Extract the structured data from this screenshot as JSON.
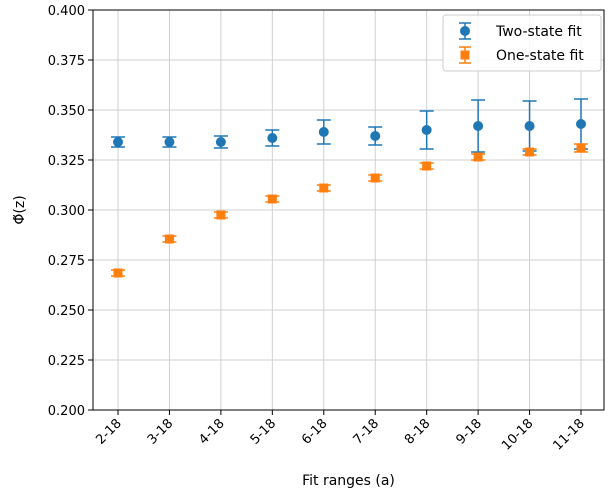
{
  "chart_data": {
    "type": "scatter",
    "title": "",
    "xlabel": "Fit ranges (a)",
    "ylabel": "Φ̃(z)",
    "categories": [
      "2-18",
      "3-18",
      "4-18",
      "5-18",
      "6-18",
      "7-18",
      "8-18",
      "9-18",
      "10-18",
      "11-18"
    ],
    "ylim": [
      0.2,
      0.4
    ],
    "yticks": [
      "0.200",
      "0.225",
      "0.250",
      "0.275",
      "0.300",
      "0.325",
      "0.350",
      "0.375",
      "0.400"
    ],
    "grid": true,
    "legend_position": "top-right",
    "series": [
      {
        "name": "Two-state fit",
        "color": "#1f77b4",
        "marker": "circle",
        "values": [
          0.334,
          0.334,
          0.334,
          0.336,
          0.339,
          0.337,
          0.34,
          0.342,
          0.342,
          0.343
        ],
        "errors": [
          0.0025,
          0.0025,
          0.003,
          0.004,
          0.006,
          0.0045,
          0.0095,
          0.013,
          0.0125,
          0.0125
        ]
      },
      {
        "name": "One-state fit",
        "color": "#ff7f0e",
        "marker": "square",
        "values": [
          0.2685,
          0.2855,
          0.2975,
          0.3055,
          0.311,
          0.316,
          0.322,
          0.3265,
          0.329,
          0.331
        ],
        "errors": [
          0.0015,
          0.0015,
          0.0015,
          0.0015,
          0.0015,
          0.0015,
          0.0015,
          0.0015,
          0.0015,
          0.002
        ]
      }
    ]
  }
}
